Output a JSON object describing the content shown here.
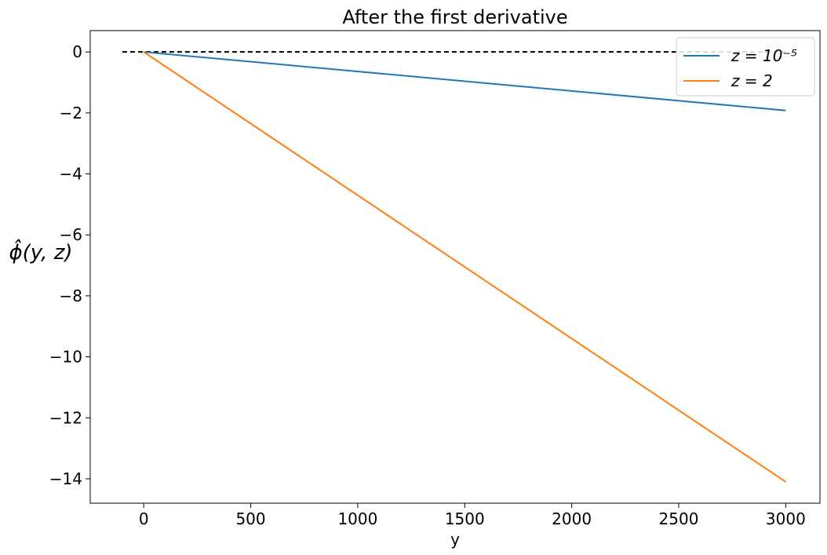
{
  "chart_data": {
    "type": "line",
    "title": "After the first derivative",
    "xlabel": "y",
    "ylabel": "ϕ̂(y, z)",
    "xlim": [
      -250,
      3160
    ],
    "ylim": [
      -14.8,
      0.7
    ],
    "xticks": [
      0,
      500,
      1000,
      1500,
      2000,
      2500,
      3000
    ],
    "yticks": [
      0,
      -2,
      -4,
      -6,
      -8,
      -10,
      -12,
      -14
    ],
    "grid": false,
    "legend_position": "top-right",
    "reference_line": {
      "y": 0,
      "x": [
        -100,
        3000
      ],
      "style": "dashed",
      "color": "#000000"
    },
    "series": [
      {
        "name": "z = 10⁻⁵",
        "color": "#1f77b4",
        "x": [
          0,
          3000
        ],
        "y": [
          0,
          -1.92
        ]
      },
      {
        "name": "z = 2",
        "color": "#ff7f0e",
        "x": [
          0,
          3000
        ],
        "y": [
          0,
          -14.1
        ]
      }
    ]
  }
}
